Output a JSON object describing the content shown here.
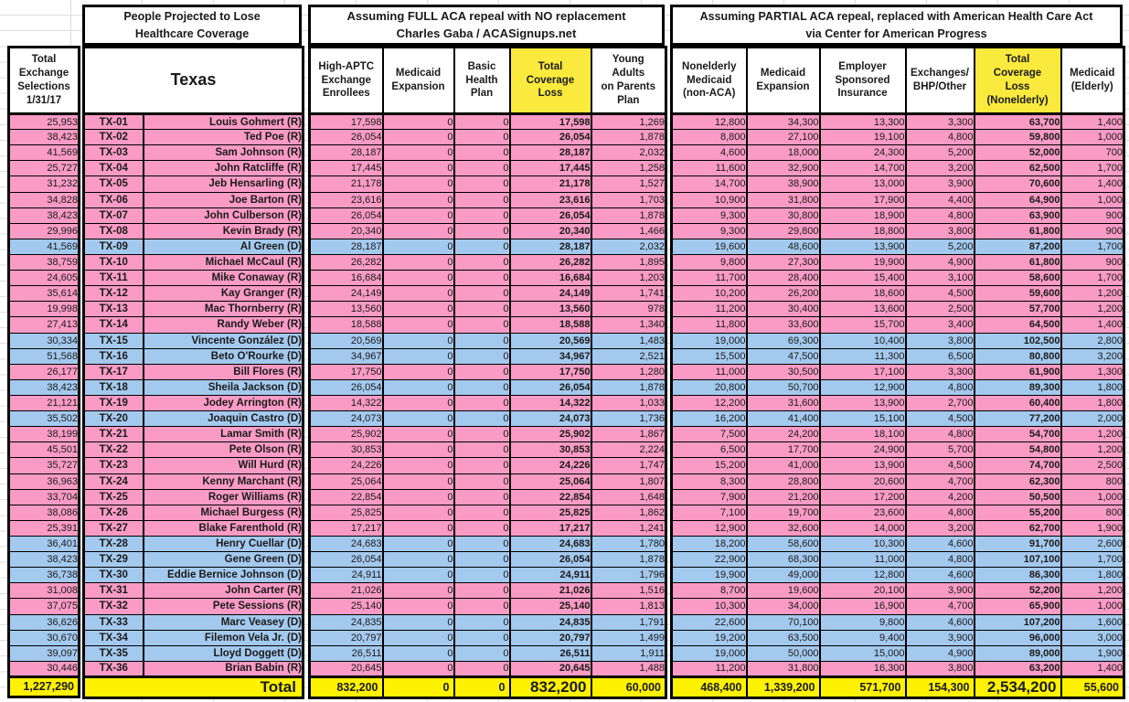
{
  "chart_data": {
    "type": "table",
    "titles": {
      "projected_line1": "People Projected to Lose",
      "projected_line2": "Healthcare Coverage",
      "full_line1": "Assuming FULL ACA repeal with NO replacement",
      "full_line2": "Charles Gaba / ACASignups.net",
      "partial_line1": "Assuming PARTIAL ACA repeal, replaced with American Health Care Act",
      "partial_line2": "via Center for American Progress"
    },
    "headers": {
      "selections": "Total\nExchange\nSelections\n1/31/17",
      "state": "Texas",
      "full_columns": [
        "High-APTC\nExchange\nEnrollees",
        "Medicaid\nExpansion",
        "Basic\nHealth\nPlan",
        "Total\nCoverage\nLoss",
        "Young\nAdults\non Parents\nPlan"
      ],
      "partial_columns": [
        "Nonelderly\nMedicaid\n(non-ACA)",
        "Medicaid\nExpansion",
        "Employer\nSponsored\nInsurance",
        "Exchanges/\nBHP/Other",
        "Total\nCoverage\nLoss\n(Nonelderly)",
        "Medicaid\n(Elderly)"
      ]
    },
    "rows": [
      {
        "selections": "25,953",
        "district": "TX-01",
        "name": "Louis Gohmert (R)",
        "party": "R",
        "full": [
          "17,598",
          "0",
          "0",
          "17,598",
          "1,269"
        ],
        "partial": [
          "12,800",
          "34,300",
          "13,300",
          "3,300",
          "63,700",
          "1,400"
        ]
      },
      {
        "selections": "38,423",
        "district": "TX-02",
        "name": "Ted Poe (R)",
        "party": "R",
        "full": [
          "26,054",
          "0",
          "0",
          "26,054",
          "1,878"
        ],
        "partial": [
          "8,800",
          "27,100",
          "19,100",
          "4,800",
          "59,800",
          "1,000"
        ]
      },
      {
        "selections": "41,569",
        "district": "TX-03",
        "name": "Sam Johnson (R)",
        "party": "R",
        "full": [
          "28,187",
          "0",
          "0",
          "28,187",
          "2,032"
        ],
        "partial": [
          "4,600",
          "18,000",
          "24,300",
          "5,200",
          "52,000",
          "700"
        ]
      },
      {
        "selections": "25,727",
        "district": "TX-04",
        "name": "John Ratcliffe (R)",
        "party": "R",
        "full": [
          "17,445",
          "0",
          "0",
          "17,445",
          "1,258"
        ],
        "partial": [
          "11,600",
          "32,900",
          "14,700",
          "3,200",
          "62,500",
          "1,700"
        ]
      },
      {
        "selections": "31,232",
        "district": "TX-05",
        "name": "Jeb Hensarling (R)",
        "party": "R",
        "full": [
          "21,178",
          "0",
          "0",
          "21,178",
          "1,527"
        ],
        "partial": [
          "14,700",
          "38,900",
          "13,000",
          "3,900",
          "70,600",
          "1,400"
        ]
      },
      {
        "selections": "34,828",
        "district": "TX-06",
        "name": "Joe Barton (R)",
        "party": "R",
        "full": [
          "23,616",
          "0",
          "0",
          "23,616",
          "1,703"
        ],
        "partial": [
          "10,900",
          "31,800",
          "17,900",
          "4,400",
          "64,900",
          "1,000"
        ]
      },
      {
        "selections": "38,423",
        "district": "TX-07",
        "name": "John Culberson (R)",
        "party": "R",
        "full": [
          "26,054",
          "0",
          "0",
          "26,054",
          "1,878"
        ],
        "partial": [
          "9,300",
          "30,800",
          "18,900",
          "4,800",
          "63,900",
          "900"
        ]
      },
      {
        "selections": "29,996",
        "district": "TX-08",
        "name": "Kevin Brady (R)",
        "party": "R",
        "full": [
          "20,340",
          "0",
          "0",
          "20,340",
          "1,466"
        ],
        "partial": [
          "9,300",
          "29,800",
          "18,800",
          "3,800",
          "61,800",
          "900"
        ]
      },
      {
        "selections": "41,569",
        "district": "TX-09",
        "name": "Al Green (D)",
        "party": "D",
        "full": [
          "28,187",
          "0",
          "0",
          "28,187",
          "2,032"
        ],
        "partial": [
          "19,600",
          "48,600",
          "13,900",
          "5,200",
          "87,200",
          "1,700"
        ]
      },
      {
        "selections": "38,759",
        "district": "TX-10",
        "name": "Michael McCaul (R)",
        "party": "R",
        "full": [
          "26,282",
          "0",
          "0",
          "26,282",
          "1,895"
        ],
        "partial": [
          "9,800",
          "27,300",
          "19,900",
          "4,900",
          "61,800",
          "900"
        ]
      },
      {
        "selections": "24,605",
        "district": "TX-11",
        "name": "Mike Conaway (R)",
        "party": "R",
        "full": [
          "16,684",
          "0",
          "0",
          "16,684",
          "1,203"
        ],
        "partial": [
          "11,700",
          "28,400",
          "15,400",
          "3,100",
          "58,600",
          "1,700"
        ]
      },
      {
        "selections": "35,614",
        "district": "TX-12",
        "name": "Kay Granger (R)",
        "party": "R",
        "full": [
          "24,149",
          "0",
          "0",
          "24,149",
          "1,741"
        ],
        "partial": [
          "10,200",
          "26,200",
          "18,600",
          "4,500",
          "59,600",
          "1,200"
        ]
      },
      {
        "selections": "19,998",
        "district": "TX-13",
        "name": "Mac Thornberry (R)",
        "party": "R",
        "full": [
          "13,560",
          "0",
          "0",
          "13,560",
          "978"
        ],
        "partial": [
          "11,200",
          "30,400",
          "13,600",
          "2,500",
          "57,700",
          "1,200"
        ]
      },
      {
        "selections": "27,413",
        "district": "TX-14",
        "name": "Randy Weber (R)",
        "party": "R",
        "full": [
          "18,588",
          "0",
          "0",
          "18,588",
          "1,340"
        ],
        "partial": [
          "11,800",
          "33,600",
          "15,700",
          "3,400",
          "64,500",
          "1,400"
        ]
      },
      {
        "selections": "30,334",
        "district": "TX-15",
        "name": "Vincente González (D)",
        "party": "D",
        "full": [
          "20,569",
          "0",
          "0",
          "20,569",
          "1,483"
        ],
        "partial": [
          "19,000",
          "69,300",
          "10,400",
          "3,800",
          "102,500",
          "2,800"
        ]
      },
      {
        "selections": "51,568",
        "district": "TX-16",
        "name": "Beto O'Rourke (D)",
        "party": "D",
        "full": [
          "34,967",
          "0",
          "0",
          "34,967",
          "2,521"
        ],
        "partial": [
          "15,500",
          "47,500",
          "11,300",
          "6,500",
          "80,800",
          "3,200"
        ]
      },
      {
        "selections": "26,177",
        "district": "TX-17",
        "name": "Bill Flores (R)",
        "party": "R",
        "full": [
          "17,750",
          "0",
          "0",
          "17,750",
          "1,280"
        ],
        "partial": [
          "11,000",
          "30,500",
          "17,100",
          "3,300",
          "61,900",
          "1,300"
        ]
      },
      {
        "selections": "38,423",
        "district": "TX-18",
        "name": "Sheila Jackson (D)",
        "party": "D",
        "full": [
          "26,054",
          "0",
          "0",
          "26,054",
          "1,878"
        ],
        "partial": [
          "20,800",
          "50,700",
          "12,900",
          "4,800",
          "89,300",
          "1,800"
        ]
      },
      {
        "selections": "21,121",
        "district": "TX-19",
        "name": "Jodey Arrington (R)",
        "party": "R",
        "full": [
          "14,322",
          "0",
          "0",
          "14,322",
          "1,033"
        ],
        "partial": [
          "12,200",
          "31,600",
          "13,900",
          "2,700",
          "60,400",
          "1,800"
        ]
      },
      {
        "selections": "35,502",
        "district": "TX-20",
        "name": "Joaquin Castro (D)",
        "party": "D",
        "full": [
          "24,073",
          "0",
          "0",
          "24,073",
          "1,736"
        ],
        "partial": [
          "16,200",
          "41,400",
          "15,100",
          "4,500",
          "77,200",
          "2,000"
        ]
      },
      {
        "selections": "38,199",
        "district": "TX-21",
        "name": "Lamar Smith (R)",
        "party": "R",
        "full": [
          "25,902",
          "0",
          "0",
          "25,902",
          "1,867"
        ],
        "partial": [
          "7,500",
          "24,200",
          "18,100",
          "4,800",
          "54,700",
          "1,200"
        ]
      },
      {
        "selections": "45,501",
        "district": "TX-22",
        "name": "Pete Olson (R)",
        "party": "R",
        "full": [
          "30,853",
          "0",
          "0",
          "30,853",
          "2,224"
        ],
        "partial": [
          "6,500",
          "17,700",
          "24,900",
          "5,700",
          "54,800",
          "1,200"
        ]
      },
      {
        "selections": "35,727",
        "district": "TX-23",
        "name": "Will Hurd (R)",
        "party": "R",
        "full": [
          "24,226",
          "0",
          "0",
          "24,226",
          "1,747"
        ],
        "partial": [
          "15,200",
          "41,000",
          "13,900",
          "4,500",
          "74,700",
          "2,500"
        ]
      },
      {
        "selections": "36,963",
        "district": "TX-24",
        "name": "Kenny Marchant (R)",
        "party": "R",
        "full": [
          "25,064",
          "0",
          "0",
          "25,064",
          "1,807"
        ],
        "partial": [
          "8,300",
          "28,800",
          "20,600",
          "4,700",
          "62,300",
          "800"
        ]
      },
      {
        "selections": "33,704",
        "district": "TX-25",
        "name": "Roger Williams (R)",
        "party": "R",
        "full": [
          "22,854",
          "0",
          "0",
          "22,854",
          "1,648"
        ],
        "partial": [
          "7,900",
          "21,200",
          "17,200",
          "4,200",
          "50,500",
          "1,000"
        ]
      },
      {
        "selections": "38,086",
        "district": "TX-26",
        "name": "Michael Burgess (R)",
        "party": "R",
        "full": [
          "25,825",
          "0",
          "0",
          "25,825",
          "1,862"
        ],
        "partial": [
          "7,100",
          "19,700",
          "23,600",
          "4,800",
          "55,200",
          "800"
        ]
      },
      {
        "selections": "25,391",
        "district": "TX-27",
        "name": "Blake Farenthold (R)",
        "party": "R",
        "full": [
          "17,217",
          "0",
          "0",
          "17,217",
          "1,241"
        ],
        "partial": [
          "12,900",
          "32,600",
          "14,000",
          "3,200",
          "62,700",
          "1,900"
        ]
      },
      {
        "selections": "36,401",
        "district": "TX-28",
        "name": "Henry Cuellar (D)",
        "party": "D",
        "full": [
          "24,683",
          "0",
          "0",
          "24,683",
          "1,780"
        ],
        "partial": [
          "18,200",
          "58,600",
          "10,300",
          "4,600",
          "91,700",
          "2,600"
        ]
      },
      {
        "selections": "38,423",
        "district": "TX-29",
        "name": "Gene Green (D)",
        "party": "D",
        "full": [
          "26,054",
          "0",
          "0",
          "26,054",
          "1,878"
        ],
        "partial": [
          "22,900",
          "68,300",
          "11,000",
          "4,800",
          "107,100",
          "1,700"
        ]
      },
      {
        "selections": "36,738",
        "district": "TX-30",
        "name": "Eddie Bernice Johnson (D)",
        "party": "D",
        "full": [
          "24,911",
          "0",
          "0",
          "24,911",
          "1,796"
        ],
        "partial": [
          "19,900",
          "49,000",
          "12,800",
          "4,600",
          "86,300",
          "1,800"
        ]
      },
      {
        "selections": "31,008",
        "district": "TX-31",
        "name": "John Carter (R)",
        "party": "R",
        "full": [
          "21,026",
          "0",
          "0",
          "21,026",
          "1,516"
        ],
        "partial": [
          "8,700",
          "19,600",
          "20,100",
          "3,900",
          "52,200",
          "1,200"
        ]
      },
      {
        "selections": "37,075",
        "district": "TX-32",
        "name": "Pete Sessions (R)",
        "party": "R",
        "full": [
          "25,140",
          "0",
          "0",
          "25,140",
          "1,813"
        ],
        "partial": [
          "10,300",
          "34,000",
          "16,900",
          "4,700",
          "65,900",
          "1,000"
        ]
      },
      {
        "selections": "36,626",
        "district": "TX-33",
        "name": "Marc Veasey (D)",
        "party": "D",
        "full": [
          "24,835",
          "0",
          "0",
          "24,835",
          "1,791"
        ],
        "partial": [
          "22,600",
          "70,100",
          "9,800",
          "4,600",
          "107,200",
          "1,600"
        ]
      },
      {
        "selections": "30,670",
        "district": "TX-34",
        "name": "Filemon Vela Jr. (D)",
        "party": "D",
        "full": [
          "20,797",
          "0",
          "0",
          "20,797",
          "1,499"
        ],
        "partial": [
          "19,200",
          "63,500",
          "9,400",
          "3,900",
          "96,000",
          "3,000"
        ]
      },
      {
        "selections": "39,097",
        "district": "TX-35",
        "name": "Lloyd Doggett (D)",
        "party": "D",
        "full": [
          "26,511",
          "0",
          "0",
          "26,511",
          "1,911"
        ],
        "partial": [
          "19,000",
          "50,000",
          "15,000",
          "4,900",
          "89,000",
          "1,900"
        ]
      },
      {
        "selections": "30,446",
        "district": "TX-36",
        "name": "Brian Babin (R)",
        "party": "R",
        "full": [
          "20,645",
          "0",
          "0",
          "20,645",
          "1,488"
        ],
        "partial": [
          "11,200",
          "31,800",
          "16,300",
          "3,800",
          "63,200",
          "1,400"
        ]
      }
    ],
    "totals": {
      "selections": "1,227,290",
      "label": "Total",
      "full": [
        "832,200",
        "0",
        "0",
        "832,200",
        "60,000"
      ],
      "partial": [
        "468,400",
        "1,339,200",
        "571,700",
        "154,300",
        "2,534,200",
        "55,600"
      ]
    },
    "colors": {
      "republican_row": "#F99BC5",
      "democrat_row": "#A4C9EE",
      "header_yellow": "#F9EA3D",
      "totals_yellow": "#FFF200"
    }
  }
}
